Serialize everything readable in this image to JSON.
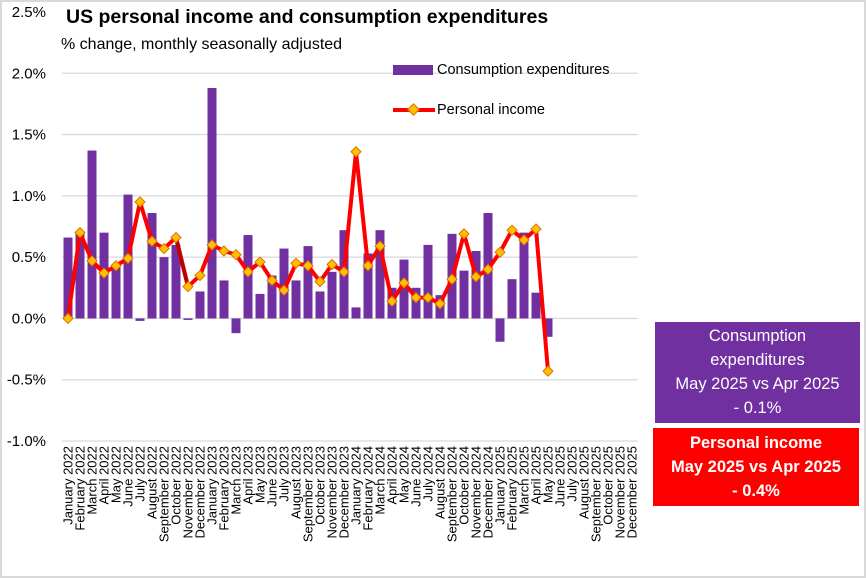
{
  "chart_data": {
    "type": "bar+line",
    "title": "US personal income and consumption expenditures",
    "subtitle": "% change, monthly seasonally adjusted",
    "xlabel": "",
    "ylabel": "",
    "ylim": [
      -1.0,
      2.5
    ],
    "yticks": [
      2.5,
      2.0,
      1.5,
      1.0,
      0.5,
      0.0,
      -0.5,
      -1.0
    ],
    "ytick_labels": [
      "2.5%",
      "2.0%",
      "1.5%",
      "1.0%",
      "0.5%",
      "0.0%",
      "-0.5%",
      "-1.0%"
    ],
    "grid": true,
    "legend_position": "top-right",
    "categories": [
      "January 2022",
      "February 2022",
      "March 2022",
      "April 2022",
      "May 2022",
      "June 2022",
      "July 2022",
      "August 2022",
      "September 2022",
      "October 2022",
      "November 2022",
      "December 2022",
      "January 2023",
      "February 2023",
      "March 2023",
      "April 2023",
      "May 2023",
      "June 2023",
      "July 2023",
      "August 2023",
      "September 2023",
      "October 2023",
      "November 2023",
      "December 2023",
      "January 2024",
      "February 2024",
      "March 2024",
      "April 2024",
      "May 2024",
      "June 2024",
      "July 2024",
      "August 2024",
      "September 2024",
      "October 2024",
      "November 2024",
      "December 2024",
      "January 2025",
      "February 2025",
      "March 2025",
      "April 2025",
      "May 2025",
      "June 2025",
      "July 2025",
      "August 2025",
      "September 2025",
      "October 2025",
      "November 2025",
      "December 2025"
    ],
    "series": [
      {
        "name": "Consumption expenditures",
        "type": "bar",
        "color": "#7030A0",
        "values": [
          0.66,
          0.7,
          1.37,
          0.7,
          0.42,
          1.01,
          -0.02,
          0.86,
          0.5,
          0.6,
          -0.01,
          0.22,
          1.88,
          0.31,
          -0.12,
          0.68,
          0.2,
          0.35,
          0.57,
          0.31,
          0.59,
          0.22,
          0.38,
          0.72,
          0.09,
          0.53,
          0.72,
          0.25,
          0.48,
          0.25,
          0.6,
          0.19,
          0.69,
          0.39,
          0.55,
          0.86,
          -0.19,
          0.32,
          0.7,
          0.21,
          -0.15,
          null,
          null,
          null,
          null,
          null,
          null,
          null
        ]
      },
      {
        "name": "Personal income",
        "type": "line",
        "color": "#FF0000",
        "highlight_segment_color": "#C00000",
        "highlight_segment": [
          "October 2022",
          "November 2022"
        ],
        "marker": "diamond",
        "marker_fill": "#FFC000",
        "marker_edge": "#E07000",
        "values": [
          0.0,
          0.7,
          0.47,
          0.37,
          0.43,
          0.49,
          0.95,
          0.63,
          0.57,
          0.66,
          0.26,
          0.35,
          0.6,
          0.55,
          0.52,
          0.38,
          0.46,
          0.31,
          0.23,
          0.45,
          0.43,
          0.3,
          0.44,
          0.38,
          1.36,
          0.43,
          0.59,
          0.14,
          0.29,
          0.17,
          0.17,
          0.12,
          0.32,
          0.69,
          0.34,
          0.4,
          0.54,
          0.72,
          0.64,
          0.73,
          -0.43,
          null,
          null,
          null,
          null,
          null,
          null,
          null
        ]
      }
    ]
  },
  "legend": {
    "items": [
      {
        "label": "Consumption expenditures",
        "color": "#7030A0"
      },
      {
        "label": "Personal income",
        "color": "#FF0000",
        "marker_fill": "#FFC000"
      }
    ]
  },
  "callouts": {
    "consumption": {
      "bg": "#7030A0",
      "lines": [
        "Consumption",
        "expenditures",
        "May 2025 vs Apr 2025",
        "- 0.1%"
      ]
    },
    "income": {
      "bg": "#FF0000",
      "lines": [
        "Personal income",
        "May 2025 vs Apr 2025",
        "- 0.4%"
      ]
    }
  },
  "style": {
    "grid_color": "#d9d9d9"
  }
}
